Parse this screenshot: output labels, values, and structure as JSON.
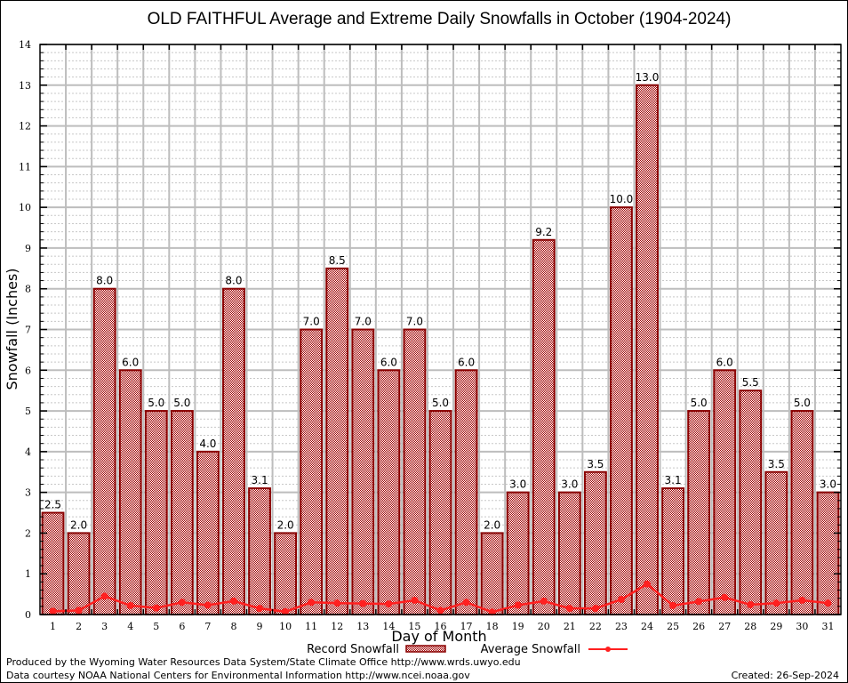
{
  "chart_data": {
    "type": "bar",
    "title": "OLD FAITHFUL Average and Extreme Daily Snowfalls in October (1904-2024)",
    "xlabel": "Day of Month",
    "ylabel": "Snowfall (Inches)",
    "ylim": [
      0,
      14
    ],
    "yticks": [
      0,
      1,
      2,
      3,
      4,
      5,
      6,
      7,
      8,
      9,
      10,
      11,
      12,
      13,
      14
    ],
    "grid": true,
    "categories": [
      "1",
      "2",
      "3",
      "4",
      "5",
      "6",
      "7",
      "8",
      "9",
      "10",
      "11",
      "12",
      "13",
      "14",
      "15",
      "16",
      "17",
      "18",
      "19",
      "20",
      "21",
      "22",
      "23",
      "24",
      "25",
      "26",
      "27",
      "28",
      "29",
      "30",
      "31"
    ],
    "series": [
      {
        "name": "Record Snowfall",
        "type": "bar",
        "color": "#8b0000",
        "values": [
          2.5,
          2.0,
          8.0,
          6.0,
          5.0,
          5.0,
          4.0,
          8.0,
          3.1,
          2.0,
          7.0,
          8.5,
          7.0,
          6.0,
          7.0,
          5.0,
          6.0,
          2.0,
          3.0,
          9.2,
          3.0,
          3.5,
          10.0,
          13.0,
          3.1,
          5.0,
          6.0,
          5.5,
          3.5,
          5.0,
          3.0
        ],
        "labels": [
          "2.5",
          "2.0",
          "8.0",
          "6.0",
          "5.0",
          "5.0",
          "4.0",
          "8.0",
          "3.1",
          "2.0",
          "7.0",
          "8.5",
          "7.0",
          "6.0",
          "7.0",
          "5.0",
          "6.0",
          "2.0",
          "3.0",
          "9.2",
          "3.0",
          "3.5",
          "10.0",
          "13.0",
          "3.1",
          "5.0",
          "6.0",
          "5.5",
          "3.5",
          "5.0",
          "3.0"
        ]
      },
      {
        "name": "Average Snowfall",
        "type": "line",
        "color": "#ff2020",
        "values": [
          0.08,
          0.1,
          0.45,
          0.22,
          0.16,
          0.3,
          0.23,
          0.33,
          0.15,
          0.07,
          0.3,
          0.28,
          0.27,
          0.26,
          0.35,
          0.1,
          0.3,
          0.06,
          0.23,
          0.33,
          0.15,
          0.15,
          0.37,
          0.75,
          0.22,
          0.32,
          0.42,
          0.24,
          0.28,
          0.35,
          0.28
        ]
      }
    ],
    "legend": {
      "position": "bottom-center",
      "entries": [
        "Record Snowfall",
        "Average Snowfall"
      ]
    }
  },
  "footer": {
    "line1": "Produced by the Wyoming Water Resources Data System/State Climate Office http://www.wrds.uwyo.edu",
    "line2": "Data courtesy NOAA National Centers for Environmental Information http://www.ncei.noaa.gov",
    "created": "Created: 26-Sep-2024"
  }
}
